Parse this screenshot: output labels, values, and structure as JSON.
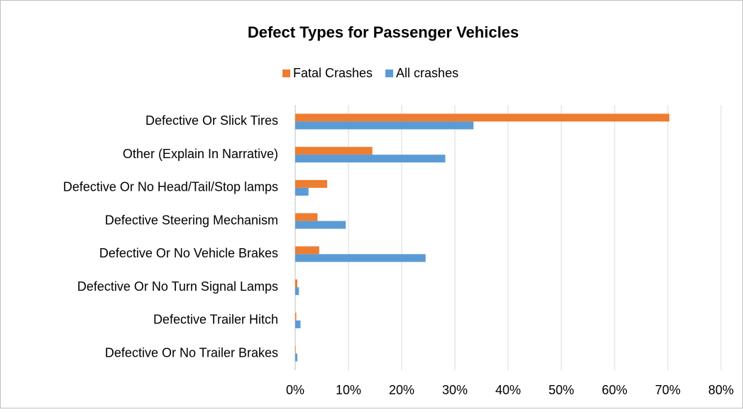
{
  "chart_data": {
    "type": "bar",
    "orientation": "horizontal",
    "title": "Defect Types for Passenger Vehicles",
    "categories": [
      "Defective Or Slick Tires",
      "Other  (Explain In Narrative)",
      "Defective Or No Head/Tail/Stop lamps",
      "Defective Steering Mechanism",
      "Defective Or No Vehicle Brakes",
      "Defective Or No Turn Signal Lamps",
      "Defective Trailer Hitch",
      "Defective Or No Trailer Brakes"
    ],
    "series": [
      {
        "name": "Fatal Crashes",
        "color": "#ed7d31",
        "values": [
          70.3,
          14.5,
          6,
          4.2,
          4.5,
          0.4,
          0.2,
          0.1
        ]
      },
      {
        "name": "All crashes",
        "color": "#5b9bd5",
        "values": [
          33.5,
          28.2,
          2.5,
          9.5,
          24.5,
          0.7,
          1,
          0.4
        ]
      }
    ],
    "xlim": [
      0,
      80
    ],
    "xticks": [
      {
        "value": 0,
        "label": "0%"
      },
      {
        "value": 10,
        "label": "10%"
      },
      {
        "value": 20,
        "label": "20%"
      },
      {
        "value": 30,
        "label": "30%"
      },
      {
        "value": 40,
        "label": "40%"
      },
      {
        "value": 50,
        "label": "50%"
      },
      {
        "value": 60,
        "label": "60%"
      },
      {
        "value": 70,
        "label": "70%"
      },
      {
        "value": 80,
        "label": "80%"
      }
    ],
    "grid": true,
    "legend": "top"
  }
}
